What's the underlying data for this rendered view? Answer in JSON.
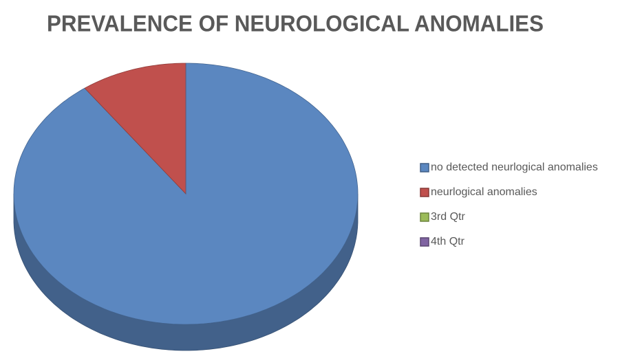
{
  "chart_data": {
    "type": "pie3d",
    "title": "PREVALENCE OF NEUROLOGICAL ANOMALIES",
    "categories": [
      "no detected neurlogical anomalies",
      "neurlogical anomalies",
      "3rd Qtr",
      "4th Qtr"
    ],
    "values": [
      90,
      10,
      0,
      0
    ],
    "colors": [
      "#5b87c0",
      "#c0504d",
      "#9bbb59",
      "#8064a2"
    ],
    "legend": "right"
  }
}
